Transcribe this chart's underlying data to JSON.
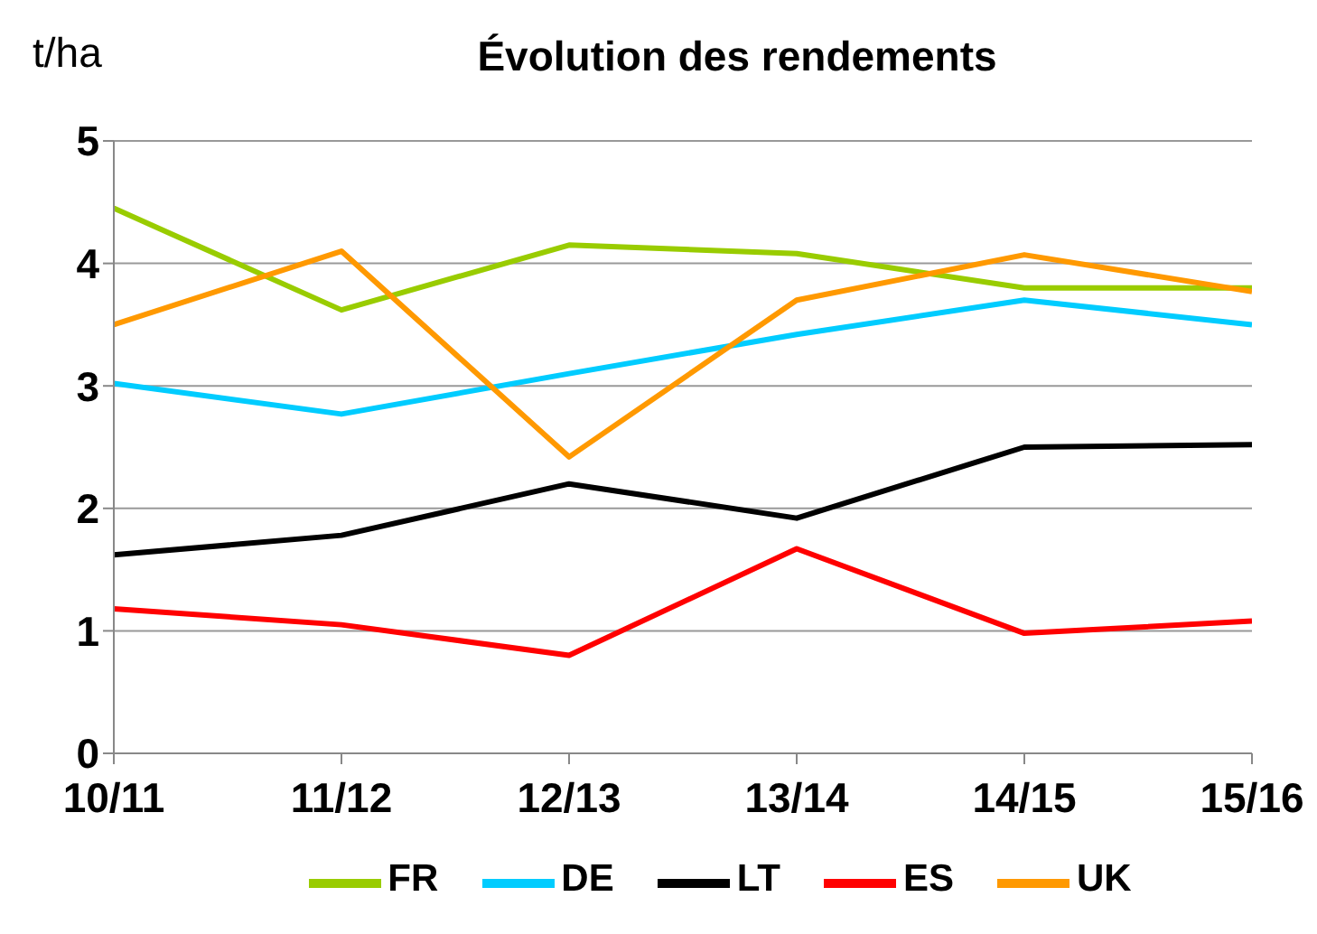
{
  "chart_data": {
    "type": "line",
    "title": "Évolution des rendements",
    "ylabel": "t/ha",
    "categories": [
      "10/11",
      "11/12",
      "12/13",
      "13/14",
      "14/15",
      "15/16"
    ],
    "series": [
      {
        "name": "FR",
        "color": "#99cc00",
        "values": [
          4.45,
          3.62,
          4.15,
          4.08,
          3.8,
          3.8
        ]
      },
      {
        "name": "DE",
        "color": "#00ccff",
        "values": [
          3.02,
          2.77,
          3.1,
          3.42,
          3.7,
          3.5
        ]
      },
      {
        "name": "LT",
        "color": "#000000",
        "values": [
          1.62,
          1.78,
          2.2,
          1.92,
          2.5,
          2.52
        ]
      },
      {
        "name": "ES",
        "color": "#ff0000",
        "values": [
          1.18,
          1.05,
          0.8,
          1.67,
          0.98,
          1.08
        ]
      },
      {
        "name": "UK",
        "color": "#ff9900",
        "values": [
          3.5,
          4.1,
          2.42,
          3.7,
          4.07,
          3.77
        ]
      }
    ],
    "ylim": [
      0,
      5
    ],
    "yticks": [
      0,
      1,
      2,
      3,
      4,
      5
    ],
    "grid": "y",
    "legend": "bottom",
    "marker": "none",
    "line_style": "solid"
  }
}
